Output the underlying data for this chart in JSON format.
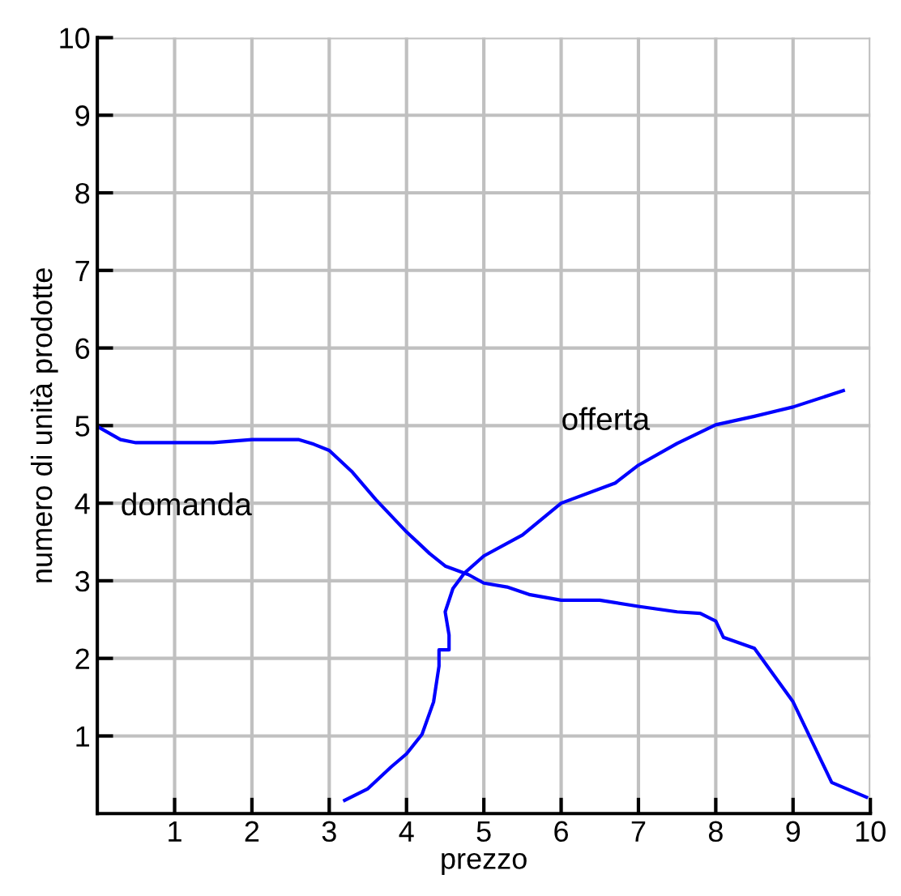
{
  "chart_data": {
    "type": "line",
    "xlabel": "prezzo",
    "ylabel": "numero di unità prodotte",
    "xlim": [
      0,
      10
    ],
    "ylim": [
      0,
      10
    ],
    "xticks": [
      1,
      2,
      3,
      4,
      5,
      6,
      7,
      8,
      9,
      10
    ],
    "yticks": [
      1,
      2,
      3,
      4,
      5,
      6,
      7,
      8,
      9,
      10
    ],
    "grid": true,
    "legend": false,
    "series": [
      {
        "color": "#0000ff",
        "x": [
          0,
          0.3,
          0.5,
          1.0,
          1.5,
          2.0,
          2.6,
          2.8,
          3.0,
          3.3,
          3.6,
          4.0,
          4.3,
          4.5,
          4.8,
          5.0,
          5.3,
          5.6,
          6.0,
          6.5,
          7.0,
          7.5,
          7.8,
          8.0,
          8.1,
          8.5,
          9.0,
          9.25,
          9.5,
          9.95
        ],
        "values": [
          4.99,
          4.82,
          4.78,
          4.78,
          4.78,
          4.82,
          4.82,
          4.76,
          4.68,
          4.4,
          4.05,
          3.63,
          3.35,
          3.19,
          3.08,
          2.97,
          2.92,
          2.82,
          2.75,
          2.75,
          2.67,
          2.6,
          2.58,
          2.48,
          2.27,
          2.13,
          1.44,
          0.92,
          0.4,
          0.21
        ]
      },
      {
        "color": "#0000ff",
        "x": [
          3.2,
          3.5,
          3.8,
          4.0,
          4.2,
          4.35,
          4.42,
          4.42,
          4.55,
          4.55,
          4.5,
          4.6,
          4.75,
          5.0,
          5.5,
          6.0,
          6.7,
          7.0,
          7.5,
          8.0,
          8.5,
          9.0,
          9.65
        ],
        "values": [
          0.17,
          0.32,
          0.6,
          0.77,
          1.02,
          1.44,
          1.9,
          2.11,
          2.11,
          2.3,
          2.6,
          2.9,
          3.1,
          3.32,
          3.59,
          4.0,
          4.26,
          4.49,
          4.77,
          5.01,
          5.12,
          5.24,
          5.45
        ]
      }
    ],
    "annotations": [
      "domanda",
      "offerta"
    ]
  }
}
